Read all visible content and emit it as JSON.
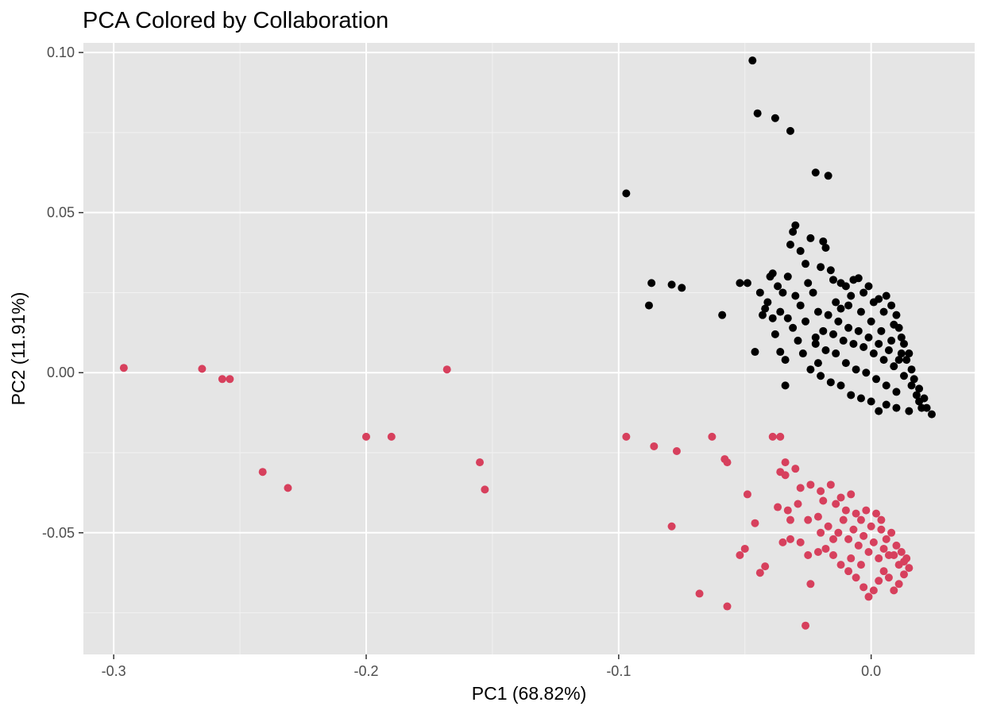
{
  "chart_data": {
    "type": "scatter",
    "title": "PCA Colored by Collaboration",
    "xlabel": "PC1 (68.82%)",
    "ylabel": "PC2 (11.91%)",
    "xlim": [
      -0.312,
      0.041
    ],
    "ylim": [
      -0.088,
      0.103
    ],
    "xticks": [
      -0.3,
      -0.2,
      -0.1,
      0.0
    ],
    "xtick_labels": [
      "-0.3",
      "-0.2",
      "-0.1",
      "0.0"
    ],
    "yticks": [
      -0.05,
      0.0,
      0.05,
      0.1
    ],
    "ytick_labels": [
      "-0.05",
      "0.00",
      "0.05",
      "0.10"
    ],
    "grid": true,
    "background": "#e5e5e5",
    "legend": "none",
    "series": [
      {
        "color": "#000000",
        "points": [
          [
            -0.047,
            0.0975
          ],
          [
            -0.045,
            0.081
          ],
          [
            -0.038,
            0.0795
          ],
          [
            -0.032,
            0.0755
          ],
          [
            -0.022,
            0.0625
          ],
          [
            -0.017,
            0.0615
          ],
          [
            -0.097,
            0.056
          ],
          [
            -0.088,
            0.021
          ],
          [
            -0.087,
            0.028
          ],
          [
            -0.079,
            0.0275
          ],
          [
            -0.075,
            0.0265
          ],
          [
            -0.059,
            0.018
          ],
          [
            -0.052,
            0.028
          ],
          [
            -0.049,
            0.028
          ],
          [
            -0.046,
            0.0065
          ],
          [
            -0.043,
            0.018
          ],
          [
            -0.042,
            0.02
          ],
          [
            -0.04,
            0.03
          ],
          [
            -0.038,
            0.012
          ],
          [
            -0.036,
            0.0065
          ],
          [
            -0.034,
            0.004
          ],
          [
            -0.034,
            -0.004
          ],
          [
            -0.032,
            0.04
          ],
          [
            -0.031,
            0.044
          ],
          [
            -0.03,
            0.046
          ],
          [
            -0.028,
            0.038
          ],
          [
            -0.026,
            0.034
          ],
          [
            -0.024,
            0.042
          ],
          [
            -0.022,
            0.009
          ],
          [
            -0.021,
            0.003
          ],
          [
            -0.02,
            0.033
          ],
          [
            -0.019,
            0.041
          ],
          [
            -0.018,
            0.039
          ],
          [
            -0.016,
            0.032
          ],
          [
            -0.015,
            0.029
          ],
          [
            -0.014,
            0.022
          ],
          [
            -0.012,
            0.028
          ],
          [
            -0.01,
            0.027
          ],
          [
            -0.009,
            0.021
          ],
          [
            -0.007,
            0.029
          ],
          [
            -0.005,
            0.0295
          ],
          [
            -0.003,
            0.025
          ],
          [
            -0.001,
            0.027
          ],
          [
            0.001,
            0.022
          ],
          [
            0.003,
            0.023
          ],
          [
            0.005,
            0.019
          ],
          [
            0.006,
            0.024
          ],
          [
            0.008,
            0.021
          ],
          [
            0.009,
            0.015
          ],
          [
            0.01,
            0.018
          ],
          [
            0.011,
            0.014
          ],
          [
            0.012,
            0.011
          ],
          [
            0.013,
            0.009
          ],
          [
            0.014,
            0.004
          ],
          [
            0.015,
            0.006
          ],
          [
            0.016,
            0.001
          ],
          [
            0.017,
            -0.002
          ],
          [
            0.018,
            -0.007
          ],
          [
            0.019,
            -0.009
          ],
          [
            0.02,
            -0.011
          ],
          [
            0.022,
            -0.011
          ],
          [
            0.024,
            -0.013
          ],
          [
            0.015,
            -0.012
          ],
          [
            0.01,
            -0.011
          ],
          [
            0.006,
            -0.01
          ],
          [
            0.003,
            -0.012
          ],
          [
            0.0,
            -0.009
          ],
          [
            -0.004,
            -0.008
          ],
          [
            -0.008,
            -0.007
          ],
          [
            -0.012,
            -0.004
          ],
          [
            -0.016,
            -0.003
          ],
          [
            -0.02,
            -0.001
          ],
          [
            -0.024,
            0.001
          ],
          [
            -0.027,
            0.006
          ],
          [
            -0.029,
            0.01
          ],
          [
            -0.031,
            0.014
          ],
          [
            -0.033,
            0.017
          ],
          [
            -0.035,
            0.025
          ],
          [
            -0.037,
            0.027
          ],
          [
            -0.039,
            0.031
          ],
          [
            -0.036,
            0.019
          ],
          [
            -0.028,
            0.021
          ],
          [
            -0.026,
            0.016
          ],
          [
            -0.023,
            0.025
          ],
          [
            -0.021,
            0.019
          ],
          [
            -0.019,
            0.013
          ],
          [
            -0.017,
            0.018
          ],
          [
            -0.015,
            0.012
          ],
          [
            -0.013,
            0.016
          ],
          [
            -0.011,
            0.01
          ],
          [
            -0.009,
            0.014
          ],
          [
            -0.007,
            0.009
          ],
          [
            -0.005,
            0.013
          ],
          [
            -0.003,
            0.008
          ],
          [
            -0.001,
            0.011
          ],
          [
            0.001,
            0.006
          ],
          [
            0.003,
            0.009
          ],
          [
            0.005,
            0.004
          ],
          [
            0.007,
            0.007
          ],
          [
            0.009,
            0.002
          ],
          [
            0.011,
            0.004
          ],
          [
            0.013,
            -0.001
          ],
          [
            -0.01,
            0.003
          ],
          [
            -0.006,
            0.001
          ],
          [
            -0.002,
            0.0
          ],
          [
            0.002,
            -0.002
          ],
          [
            0.006,
            -0.004
          ],
          [
            0.01,
            -0.006
          ],
          [
            -0.014,
            0.006
          ],
          [
            -0.018,
            0.007
          ],
          [
            -0.022,
            0.011
          ],
          [
            -0.025,
            0.028
          ],
          [
            -0.012,
            0.02
          ],
          [
            -0.008,
            0.024
          ],
          [
            -0.004,
            0.019
          ],
          [
            0.0,
            0.016
          ],
          [
            0.004,
            0.013
          ],
          [
            0.008,
            0.01
          ],
          [
            0.012,
            0.006
          ],
          [
            0.016,
            -0.004
          ],
          [
            0.019,
            -0.005
          ],
          [
            0.021,
            -0.008
          ],
          [
            -0.03,
            0.024
          ],
          [
            -0.041,
            0.022
          ],
          [
            -0.044,
            0.025
          ],
          [
            -0.039,
            0.017
          ],
          [
            -0.033,
            0.03
          ]
        ]
      },
      {
        "color": "#d7405d",
        "points": [
          [
            -0.296,
            0.0015
          ],
          [
            -0.265,
            0.0012
          ],
          [
            -0.257,
            -0.002
          ],
          [
            -0.254,
            -0.002
          ],
          [
            -0.2,
            -0.02
          ],
          [
            -0.19,
            -0.02
          ],
          [
            -0.241,
            -0.031
          ],
          [
            -0.231,
            -0.036
          ],
          [
            -0.168,
            0.001
          ],
          [
            -0.155,
            -0.028
          ],
          [
            -0.153,
            -0.0365
          ],
          [
            -0.097,
            -0.02
          ],
          [
            -0.086,
            -0.023
          ],
          [
            -0.077,
            -0.0245
          ],
          [
            -0.079,
            -0.048
          ],
          [
            -0.068,
            -0.069
          ],
          [
            -0.063,
            -0.02
          ],
          [
            -0.058,
            -0.027
          ],
          [
            -0.057,
            -0.028
          ],
          [
            -0.057,
            -0.073
          ],
          [
            -0.049,
            -0.038
          ],
          [
            -0.046,
            -0.047
          ],
          [
            -0.052,
            -0.057
          ],
          [
            -0.05,
            -0.055
          ],
          [
            -0.044,
            -0.0625
          ],
          [
            -0.042,
            -0.0605
          ],
          [
            -0.039,
            -0.02
          ],
          [
            -0.036,
            -0.02
          ],
          [
            -0.034,
            -0.028
          ],
          [
            -0.034,
            -0.032
          ],
          [
            -0.036,
            -0.031
          ],
          [
            -0.03,
            -0.03
          ],
          [
            -0.028,
            -0.036
          ],
          [
            -0.024,
            -0.035
          ],
          [
            -0.02,
            -0.037
          ],
          [
            -0.016,
            -0.035
          ],
          [
            -0.014,
            -0.041
          ],
          [
            -0.012,
            -0.039
          ],
          [
            -0.01,
            -0.043
          ],
          [
            -0.008,
            -0.038
          ],
          [
            -0.006,
            -0.044
          ],
          [
            -0.004,
            -0.046
          ],
          [
            -0.002,
            -0.043
          ],
          [
            0.0,
            -0.048
          ],
          [
            0.002,
            -0.044
          ],
          [
            0.004,
            -0.046
          ],
          [
            0.006,
            -0.052
          ],
          [
            0.008,
            -0.05
          ],
          [
            0.01,
            -0.054
          ],
          [
            0.012,
            -0.056
          ],
          [
            0.014,
            -0.058
          ],
          [
            0.015,
            -0.061
          ],
          [
            0.013,
            -0.063
          ],
          [
            0.011,
            -0.066
          ],
          [
            0.009,
            -0.068
          ],
          [
            0.007,
            -0.064
          ],
          [
            0.005,
            -0.062
          ],
          [
            0.003,
            -0.065
          ],
          [
            0.001,
            -0.068
          ],
          [
            -0.001,
            -0.07
          ],
          [
            -0.003,
            -0.067
          ],
          [
            -0.006,
            -0.064
          ],
          [
            -0.009,
            -0.062
          ],
          [
            -0.012,
            -0.06
          ],
          [
            -0.015,
            -0.057
          ],
          [
            -0.018,
            -0.055
          ],
          [
            -0.021,
            -0.056
          ],
          [
            -0.025,
            -0.057
          ],
          [
            -0.028,
            -0.053
          ],
          [
            -0.032,
            -0.052
          ],
          [
            -0.035,
            -0.053
          ],
          [
            -0.037,
            -0.042
          ],
          [
            -0.033,
            -0.043
          ],
          [
            -0.029,
            -0.041
          ],
          [
            -0.025,
            -0.046
          ],
          [
            -0.021,
            -0.045
          ],
          [
            -0.017,
            -0.048
          ],
          [
            -0.013,
            -0.05
          ],
          [
            -0.009,
            -0.052
          ],
          [
            -0.005,
            -0.054
          ],
          [
            -0.001,
            -0.056
          ],
          [
            0.003,
            -0.058
          ],
          [
            0.007,
            -0.057
          ],
          [
            0.011,
            -0.06
          ],
          [
            -0.024,
            -0.066
          ],
          [
            -0.026,
            -0.079
          ],
          [
            -0.032,
            -0.046
          ],
          [
            -0.019,
            -0.04
          ],
          [
            -0.011,
            -0.046
          ],
          [
            -0.007,
            -0.049
          ],
          [
            -0.003,
            -0.051
          ],
          [
            0.001,
            -0.053
          ],
          [
            0.005,
            -0.055
          ],
          [
            0.009,
            -0.057
          ],
          [
            0.013,
            -0.059
          ],
          [
            -0.015,
            -0.052
          ],
          [
            -0.02,
            -0.05
          ],
          [
            -0.008,
            -0.058
          ],
          [
            -0.004,
            -0.06
          ],
          [
            0.004,
            -0.049
          ]
        ]
      }
    ]
  }
}
